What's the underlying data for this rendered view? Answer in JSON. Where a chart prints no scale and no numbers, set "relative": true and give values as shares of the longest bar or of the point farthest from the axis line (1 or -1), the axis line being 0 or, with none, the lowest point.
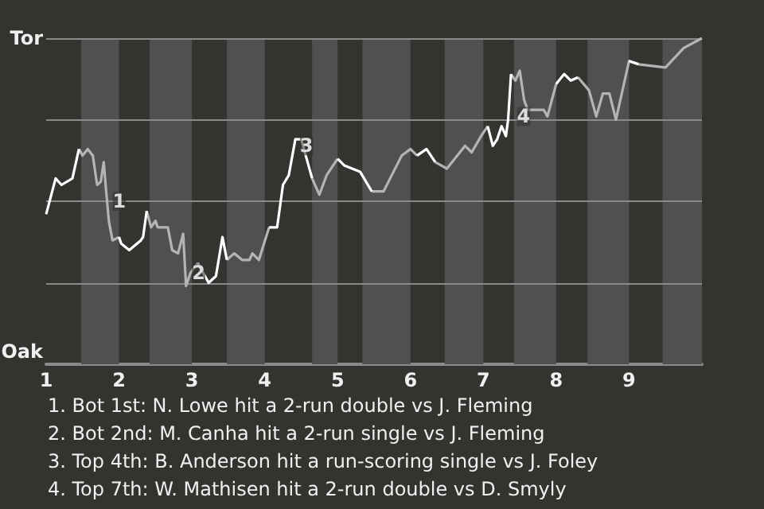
{
  "chart_data": {
    "type": "line",
    "x": [
      1.0,
      1.13,
      1.21,
      1.36,
      1.45,
      1.5,
      1.57,
      1.64,
      1.7,
      1.75,
      1.79,
      1.82,
      1.86,
      1.91,
      2.0,
      2.03,
      2.14,
      2.3,
      2.33,
      2.38,
      2.44,
      2.5,
      2.53,
      2.67,
      2.73,
      2.81,
      2.88,
      2.92,
      2.98,
      3.08,
      3.23,
      3.33,
      3.42,
      3.48,
      3.58,
      3.69,
      3.79,
      3.83,
      3.92,
      4.06,
      4.17,
      4.25,
      4.33,
      4.42,
      4.5,
      4.65,
      4.75,
      4.85,
      5.0,
      5.09,
      5.31,
      5.47,
      5.63,
      5.88,
      6.0,
      6.09,
      6.22,
      6.34,
      6.5,
      6.75,
      6.84,
      6.97,
      7.06,
      7.13,
      7.19,
      7.25,
      7.31,
      7.34,
      7.38,
      7.44,
      7.5,
      7.56,
      7.61,
      7.83,
      7.88,
      8.0,
      8.11,
      8.2,
      8.3,
      8.45,
      8.55,
      8.64,
      8.73,
      8.82,
      9.0,
      9.13,
      9.5,
      9.75,
      10.0
    ],
    "xlim": [
      1,
      10
    ],
    "xticks": [
      1,
      2,
      3,
      4,
      5,
      6,
      7,
      8,
      9
    ],
    "relative": true,
    "series": [
      {
        "color": "#ffffff",
        "values": [
          0.46,
          0.57,
          0.55,
          0.57,
          0.66,
          null,
          null,
          null,
          null,
          null,
          null,
          null,
          null,
          null,
          0.39,
          0.37,
          0.35,
          0.38,
          0.39,
          0.47,
          null,
          null,
          null,
          null,
          null,
          null,
          null,
          null,
          null,
          0.31,
          0.25,
          0.27,
          0.39,
          0.32,
          null,
          null,
          null,
          null,
          null,
          0.42,
          0.42,
          0.55,
          0.58,
          0.69,
          0.69,
          0.57,
          null,
          null,
          0.63,
          0.61,
          0.59,
          0.53,
          null,
          null,
          null,
          0.64,
          0.66,
          0.62,
          null,
          null,
          null,
          null,
          0.73,
          0.67,
          0.69,
          0.73,
          0.7,
          0.75,
          0.89,
          null,
          null,
          null,
          null,
          null,
          null,
          0.86,
          0.89,
          0.87,
          0.88,
          null,
          null,
          null,
          null,
          null,
          0.93,
          0.92,
          null,
          null,
          null
        ]
      },
      {
        "color": "#b4b4b4",
        "values": [
          null,
          null,
          null,
          null,
          0.66,
          0.64,
          0.66,
          0.64,
          0.55,
          0.56,
          0.62,
          0.54,
          0.44,
          0.38,
          0.39,
          null,
          null,
          null,
          null,
          0.47,
          0.42,
          0.44,
          0.42,
          0.42,
          0.35,
          0.34,
          0.4,
          0.24,
          0.28,
          0.31,
          null,
          null,
          null,
          0.32,
          0.34,
          0.32,
          0.32,
          0.34,
          0.32,
          0.42,
          null,
          null,
          null,
          null,
          null,
          0.57,
          0.52,
          0.58,
          0.63,
          null,
          null,
          0.53,
          0.53,
          0.64,
          0.66,
          0.64,
          null,
          0.62,
          0.6,
          0.67,
          0.65,
          0.7,
          0.73,
          null,
          null,
          null,
          null,
          null,
          0.89,
          0.87,
          0.9,
          0.81,
          0.78,
          0.78,
          0.76,
          0.86,
          null,
          null,
          0.88,
          0.84,
          0.76,
          0.83,
          0.83,
          0.75,
          0.93,
          0.92,
          0.91,
          0.97,
          1.0
        ]
      }
    ],
    "marker": "none",
    "ref_lines": [
      {
        "axis": "y",
        "value": 0.25,
        "color": "#8a8a8a"
      },
      {
        "axis": "y",
        "value": 0.5,
        "color": "#8a8a8a"
      },
      {
        "axis": "y",
        "value": 0.75,
        "color": "#8a8a8a"
      },
      {
        "axis": "y",
        "value": 1,
        "color": "#8a8a8a"
      }
    ],
    "bands": [
      {
        "axis": "x",
        "from": 1.48,
        "to": 2,
        "color": "#505050"
      },
      {
        "axis": "x",
        "from": 2.42,
        "to": 3,
        "color": "#505050"
      },
      {
        "axis": "x",
        "from": 3.48,
        "to": 4,
        "color": "#505050"
      },
      {
        "axis": "x",
        "from": 4.65,
        "to": 5,
        "color": "#505050"
      },
      {
        "axis": "x",
        "from": 5.34,
        "to": 6,
        "color": "#505050"
      },
      {
        "axis": "x",
        "from": 6.47,
        "to": 7,
        "color": "#505050"
      },
      {
        "axis": "x",
        "from": 7.42,
        "to": 8,
        "color": "#505050"
      },
      {
        "axis": "x",
        "from": 8.43,
        "to": 9,
        "color": "#505050"
      },
      {
        "axis": "x",
        "from": 9.46,
        "to": 10,
        "color": "#505050"
      }
    ],
    "annotations": [
      "Tor",
      "Oak",
      {
        "text": "1",
        "x": 1.89,
        "y": 0.5
      },
      {
        "text": "2",
        "x": 2.98,
        "y": 0.28
      },
      {
        "text": "3",
        "x": 4.46,
        "y": 0.67
      },
      {
        "text": "4",
        "x": 7.44,
        "y": 0.76
      },
      "1. Bot 1st: N. Lowe hit a 2-run double vs J. Fleming",
      "2. Bot 2nd: M. Canha hit a 2-run single vs J. Fleming",
      "3. Top 4th: B. Anderson hit a run-scoring single vs J. Foley",
      "4. Top 7th: W. Mathisen hit a 2-run double vs D. Smyly"
    ]
  }
}
